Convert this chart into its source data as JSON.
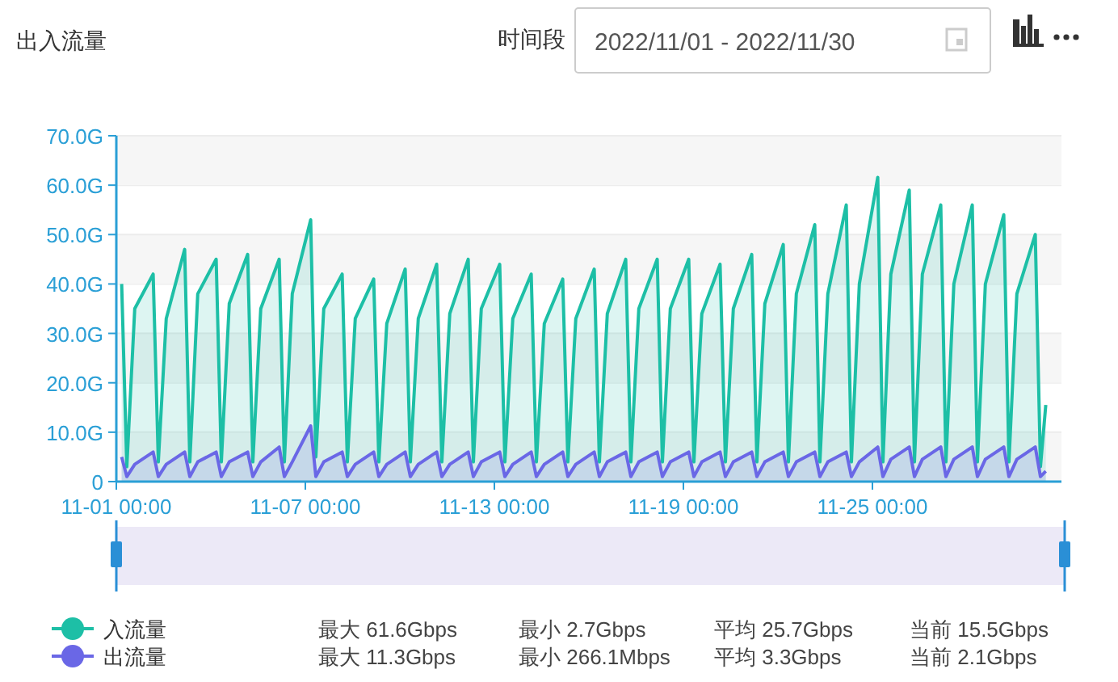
{
  "chart_data": {
    "type": "area",
    "title": "出入流量",
    "annotations": [
      "时间段",
      "2022/11/01 - 2022/11/30",
      "最大 61.6Gbps",
      "最小 2.7Gbps",
      "平均 25.7Gbps",
      "当前 15.5Gbps",
      "最大 11.3Gbps",
      "最小 266.1Mbps",
      "平均 3.3Gbps",
      "当前 2.1Gbps"
    ],
    "xlim": [
      "2022-11-01T00:00",
      "2022-12-01T00:00"
    ],
    "xticks": [
      {
        "value": "2022-11-01T00:00",
        "label": "11-01 00:00"
      },
      {
        "value": "2022-11-07T00:00",
        "label": "11-07 00:00"
      },
      {
        "value": "2022-11-13T00:00",
        "label": "11-13 00:00"
      },
      {
        "value": "2022-11-19T00:00",
        "label": "11-19 00:00"
      },
      {
        "value": "2022-11-25T00:00",
        "label": "11-25 00:00"
      }
    ],
    "ylim": [
      0,
      70
    ],
    "yticks": [
      0,
      {
        "value": 10,
        "label": "10.0G"
      },
      {
        "value": 20,
        "label": "20.0G"
      },
      {
        "value": 30,
        "label": "30.0G"
      },
      {
        "value": 40,
        "label": "40.0G"
      },
      {
        "value": 50,
        "label": "50.0G"
      },
      {
        "value": 60,
        "label": "60.0G"
      },
      {
        "value": 70,
        "label": "70.0G"
      }
    ],
    "grid": "y",
    "legend": "bottom",
    "x": [
      "2022-11-01T04:00",
      "2022-11-01T08:00",
      "2022-11-01T14:00",
      "2022-11-02T04:00",
      "2022-11-02T08:00",
      "2022-11-02T14:00",
      "2022-11-03T04:00",
      "2022-11-03T08:00",
      "2022-11-03T14:00",
      "2022-11-04T04:00",
      "2022-11-04T08:00",
      "2022-11-04T14:00",
      "2022-11-05T04:00",
      "2022-11-05T08:00",
      "2022-11-05T14:00",
      "2022-11-06T04:00",
      "2022-11-06T08:00",
      "2022-11-06T14:00",
      "2022-11-07T04:00",
      "2022-11-07T08:00",
      "2022-11-07T14:00",
      "2022-11-08T04:00",
      "2022-11-08T08:00",
      "2022-11-08T14:00",
      "2022-11-09T04:00",
      "2022-11-09T08:00",
      "2022-11-09T14:00",
      "2022-11-10T04:00",
      "2022-11-10T08:00",
      "2022-11-10T14:00",
      "2022-11-11T04:00",
      "2022-11-11T08:00",
      "2022-11-11T14:00",
      "2022-11-12T04:00",
      "2022-11-12T08:00",
      "2022-11-12T14:00",
      "2022-11-13T04:00",
      "2022-11-13T08:00",
      "2022-11-13T14:00",
      "2022-11-14T04:00",
      "2022-11-14T08:00",
      "2022-11-14T14:00",
      "2022-11-15T04:00",
      "2022-11-15T08:00",
      "2022-11-15T14:00",
      "2022-11-16T04:00",
      "2022-11-16T08:00",
      "2022-11-16T14:00",
      "2022-11-17T04:00",
      "2022-11-17T08:00",
      "2022-11-17T14:00",
      "2022-11-18T04:00",
      "2022-11-18T08:00",
      "2022-11-18T14:00",
      "2022-11-19T04:00",
      "2022-11-19T08:00",
      "2022-11-19T14:00",
      "2022-11-20T04:00",
      "2022-11-20T08:00",
      "2022-11-20T14:00",
      "2022-11-21T04:00",
      "2022-11-21T08:00",
      "2022-11-21T14:00",
      "2022-11-22T04:00",
      "2022-11-22T08:00",
      "2022-11-22T14:00",
      "2022-11-23T04:00",
      "2022-11-23T08:00",
      "2022-11-23T14:00",
      "2022-11-24T04:00",
      "2022-11-24T08:00",
      "2022-11-24T14:00",
      "2022-11-25T04:00",
      "2022-11-25T08:00",
      "2022-11-25T14:00",
      "2022-11-26T04:00",
      "2022-11-26T08:00",
      "2022-11-26T14:00",
      "2022-11-27T04:00",
      "2022-11-27T08:00",
      "2022-11-27T14:00",
      "2022-11-28T04:00",
      "2022-11-28T08:00",
      "2022-11-28T14:00",
      "2022-11-29T04:00",
      "2022-11-29T08:00",
      "2022-11-29T14:00",
      "2022-11-30T04:00",
      "2022-11-30T08:00",
      "2022-11-30T12:00"
    ],
    "series": [
      {
        "name": "入流量",
        "color": "#1dbfa6",
        "values": [
          40,
          3,
          35,
          42,
          4,
          33,
          47,
          4,
          38,
          45,
          4,
          36,
          46,
          4,
          35,
          45,
          4,
          38,
          53,
          5,
          35,
          42,
          4,
          33,
          41,
          4,
          32,
          43,
          4,
          33,
          44,
          4,
          34,
          45,
          4,
          35,
          44,
          4,
          33,
          42,
          4,
          32,
          41,
          4,
          33,
          43,
          4,
          34,
          45,
          4,
          35,
          45,
          4,
          35,
          45,
          4,
          34,
          44,
          4,
          35,
          46,
          4,
          36,
          48,
          4,
          38,
          52,
          4,
          38,
          56,
          4,
          40,
          61.6,
          4,
          42,
          59,
          4,
          42,
          56,
          4,
          40,
          56,
          4,
          40,
          54,
          4,
          38,
          50,
          3,
          15.5
        ]
      },
      {
        "name": "出流量",
        "color": "#6a67e6",
        "values": [
          5,
          1,
          3.5,
          6,
          1,
          3.5,
          6,
          1,
          4,
          6,
          1,
          4,
          6,
          1,
          4,
          7,
          1,
          4,
          11.3,
          1,
          4,
          6,
          1,
          3.5,
          6,
          1,
          3.5,
          6,
          1,
          3.5,
          6,
          1,
          3.5,
          6,
          1,
          4,
          6,
          1,
          3.5,
          6,
          1,
          3.5,
          6,
          1,
          3.5,
          6,
          1,
          4,
          6,
          1,
          4,
          6,
          1,
          4,
          6,
          1,
          4,
          6,
          1,
          4,
          6,
          1,
          4,
          6,
          1,
          4,
          6,
          1,
          4,
          6,
          1,
          4,
          7,
          1,
          4.5,
          7,
          1,
          4.5,
          7,
          1,
          4.5,
          7,
          1,
          4.5,
          7,
          1,
          4.5,
          7,
          1,
          2.1
        ]
      }
    ]
  }
}
